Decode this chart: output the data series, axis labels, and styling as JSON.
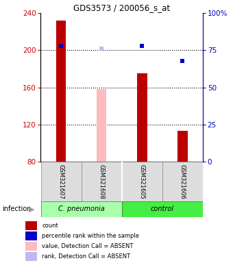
{
  "title": "GDS3573 / 200056_s_at",
  "samples": [
    "GSM321607",
    "GSM321608",
    "GSM321605",
    "GSM321606"
  ],
  "bar_values": [
    232,
    158,
    175,
    113
  ],
  "bar_colors": [
    "#bb0000",
    "#ffbbbb",
    "#bb0000",
    "#bb0000"
  ],
  "percentile_values": [
    78,
    76,
    78,
    68
  ],
  "percentile_colors": [
    "#0000cc",
    "#bbbbee",
    "#0000cc",
    "#0000cc"
  ],
  "ylim_left": [
    80,
    240
  ],
  "ylim_right": [
    0,
    100
  ],
  "yticks_left": [
    80,
    120,
    160,
    200,
    240
  ],
  "yticks_right": [
    0,
    25,
    50,
    75,
    100
  ],
  "ytick_labels_right": [
    "0",
    "25",
    "50",
    "75",
    "100%"
  ],
  "group_labels": [
    "C. pneumonia",
    "control"
  ],
  "group_colors": [
    "#aaffaa",
    "#44ee44"
  ],
  "group_ranges": [
    [
      0,
      1
    ],
    [
      2,
      3
    ]
  ],
  "infection_label": "infection",
  "legend_items": [
    {
      "label": "count",
      "color": "#bb0000"
    },
    {
      "label": "percentile rank within the sample",
      "color": "#0000cc"
    },
    {
      "label": "value, Detection Call = ABSENT",
      "color": "#ffbbbb"
    },
    {
      "label": "rank, Detection Call = ABSENT",
      "color": "#bbbbee"
    }
  ],
  "bar_width": 0.25,
  "left_axis_color": "#cc0000",
  "right_axis_color": "#0000bb",
  "grid_dotted_at": [
    120,
    160,
    200
  ]
}
